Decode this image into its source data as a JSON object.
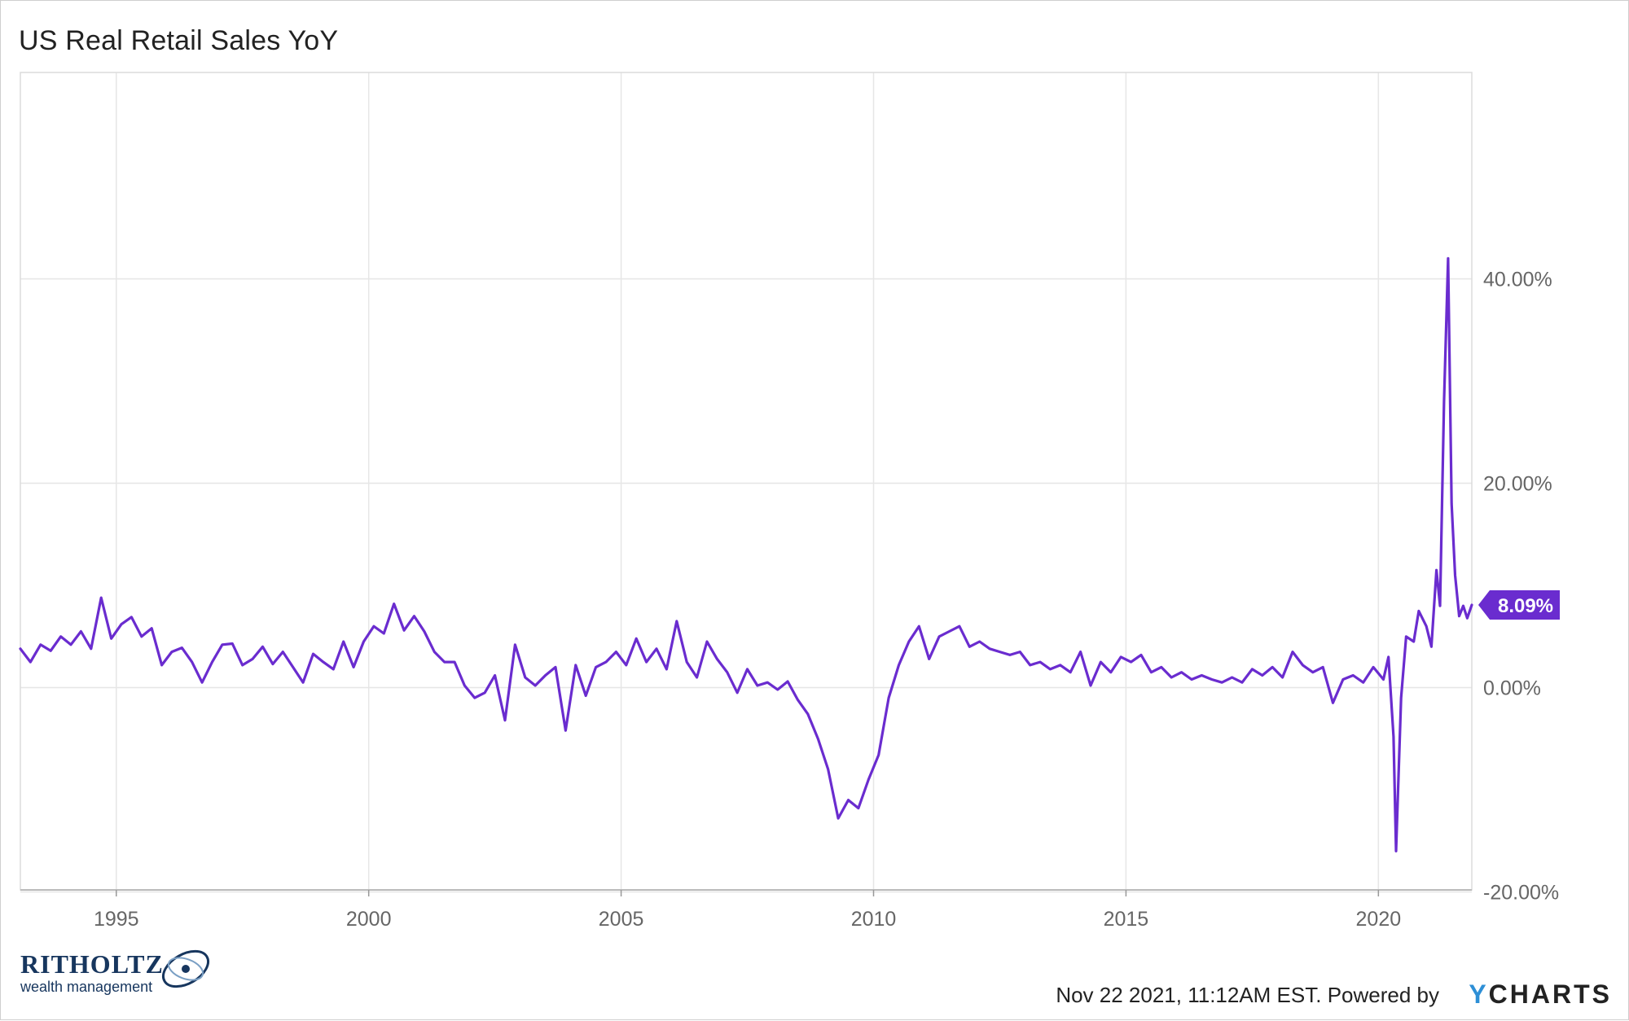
{
  "page": {
    "title": "US Real Retail Sales YoY"
  },
  "footer": {
    "timestamp": "Nov 22 2021, 11:12AM EST. Powered by",
    "brand_y": "Y",
    "brand_rest": "CHARTS"
  },
  "logo": {
    "name": "RITHOLTZ",
    "subtitle": "wealth management"
  },
  "colors": {
    "line": "#6a2ccf",
    "grid": "#e6e6e6",
    "axis": "#999999",
    "label_bg": "#6a2ccf"
  },
  "chart_data": {
    "type": "line",
    "title": "US Real Retail Sales YoY",
    "xlim": [
      1993.1,
      2021.85
    ],
    "ylim": [
      -19.8,
      60.2
    ],
    "x_ticks": [
      {
        "value": 1995,
        "label": "1995"
      },
      {
        "value": 2000,
        "label": "2000"
      },
      {
        "value": 2005,
        "label": "2005"
      },
      {
        "value": 2010,
        "label": "2010"
      },
      {
        "value": 2015,
        "label": "2015"
      },
      {
        "value": 2020,
        "label": "2020"
      }
    ],
    "y_ticks": [
      {
        "value": 40,
        "label": "40.00%"
      },
      {
        "value": 20,
        "label": "20.00%"
      },
      {
        "value": 0,
        "label": "0.00%"
      },
      {
        "value": -20,
        "label": "-20.00%"
      }
    ],
    "last_value_label": "8.09%",
    "last_value": 8.09,
    "grid": true,
    "series": [
      {
        "points": [
          [
            1993.1,
            3.8
          ],
          [
            1993.3,
            2.5
          ],
          [
            1993.5,
            4.2
          ],
          [
            1993.7,
            3.6
          ],
          [
            1993.9,
            5.0
          ],
          [
            1994.1,
            4.2
          ],
          [
            1994.3,
            5.5
          ],
          [
            1994.5,
            3.8
          ],
          [
            1994.7,
            8.8
          ],
          [
            1994.9,
            4.8
          ],
          [
            1995.1,
            6.2
          ],
          [
            1995.3,
            6.9
          ],
          [
            1995.5,
            5.0
          ],
          [
            1995.7,
            5.8
          ],
          [
            1995.9,
            2.2
          ],
          [
            1996.1,
            3.5
          ],
          [
            1996.3,
            3.9
          ],
          [
            1996.5,
            2.5
          ],
          [
            1996.7,
            0.5
          ],
          [
            1996.9,
            2.5
          ],
          [
            1997.1,
            4.2
          ],
          [
            1997.3,
            4.3
          ],
          [
            1997.5,
            2.2
          ],
          [
            1997.7,
            2.8
          ],
          [
            1997.9,
            4.0
          ],
          [
            1998.1,
            2.3
          ],
          [
            1998.3,
            3.5
          ],
          [
            1998.5,
            2.0
          ],
          [
            1998.7,
            0.5
          ],
          [
            1998.9,
            3.3
          ],
          [
            1999.1,
            2.5
          ],
          [
            1999.3,
            1.8
          ],
          [
            1999.5,
            4.5
          ],
          [
            1999.7,
            2.0
          ],
          [
            1999.9,
            4.5
          ],
          [
            2000.1,
            6.0
          ],
          [
            2000.3,
            5.3
          ],
          [
            2000.5,
            8.2
          ],
          [
            2000.7,
            5.6
          ],
          [
            2000.9,
            7.0
          ],
          [
            2001.1,
            5.5
          ],
          [
            2001.3,
            3.5
          ],
          [
            2001.5,
            2.5
          ],
          [
            2001.7,
            2.5
          ],
          [
            2001.9,
            0.2
          ],
          [
            2002.1,
            -1.0
          ],
          [
            2002.3,
            -0.5
          ],
          [
            2002.5,
            1.2
          ],
          [
            2002.7,
            -3.2
          ],
          [
            2002.9,
            4.2
          ],
          [
            2003.1,
            1.0
          ],
          [
            2003.3,
            0.2
          ],
          [
            2003.5,
            1.2
          ],
          [
            2003.7,
            2.0
          ],
          [
            2003.9,
            -4.2
          ],
          [
            2004.1,
            2.2
          ],
          [
            2004.3,
            -0.8
          ],
          [
            2004.5,
            2.0
          ],
          [
            2004.7,
            2.5
          ],
          [
            2004.9,
            3.5
          ],
          [
            2005.1,
            2.2
          ],
          [
            2005.3,
            4.8
          ],
          [
            2005.5,
            2.5
          ],
          [
            2005.7,
            3.8
          ],
          [
            2005.9,
            1.8
          ],
          [
            2006.1,
            6.5
          ],
          [
            2006.3,
            2.5
          ],
          [
            2006.5,
            1.0
          ],
          [
            2006.7,
            4.5
          ],
          [
            2006.9,
            2.8
          ],
          [
            2007.1,
            1.5
          ],
          [
            2007.3,
            -0.5
          ],
          [
            2007.5,
            1.8
          ],
          [
            2007.7,
            0.2
          ],
          [
            2007.9,
            0.5
          ],
          [
            2008.1,
            -0.2
          ],
          [
            2008.3,
            0.6
          ],
          [
            2008.5,
            -1.2
          ],
          [
            2008.7,
            -2.6
          ],
          [
            2008.9,
            -5.0
          ],
          [
            2009.1,
            -8.0
          ],
          [
            2009.3,
            -12.8
          ],
          [
            2009.5,
            -11.0
          ],
          [
            2009.7,
            -11.8
          ],
          [
            2009.9,
            -9.0
          ],
          [
            2010.1,
            -6.6
          ],
          [
            2010.3,
            -1.0
          ],
          [
            2010.5,
            2.2
          ],
          [
            2010.7,
            4.5
          ],
          [
            2010.9,
            6.0
          ],
          [
            2011.1,
            2.8
          ],
          [
            2011.3,
            5.0
          ],
          [
            2011.5,
            5.5
          ],
          [
            2011.7,
            6.0
          ],
          [
            2011.9,
            4.0
          ],
          [
            2012.1,
            4.5
          ],
          [
            2012.3,
            3.8
          ],
          [
            2012.5,
            3.5
          ],
          [
            2012.7,
            3.2
          ],
          [
            2012.9,
            3.5
          ],
          [
            2013.1,
            2.2
          ],
          [
            2013.3,
            2.5
          ],
          [
            2013.5,
            1.8
          ],
          [
            2013.7,
            2.2
          ],
          [
            2013.9,
            1.5
          ],
          [
            2014.1,
            3.5
          ],
          [
            2014.3,
            0.2
          ],
          [
            2014.5,
            2.5
          ],
          [
            2014.7,
            1.5
          ],
          [
            2014.9,
            3.0
          ],
          [
            2015.1,
            2.5
          ],
          [
            2015.3,
            3.2
          ],
          [
            2015.5,
            1.5
          ],
          [
            2015.7,
            2.0
          ],
          [
            2015.9,
            1.0
          ],
          [
            2016.1,
            1.5
          ],
          [
            2016.3,
            0.8
          ],
          [
            2016.5,
            1.2
          ],
          [
            2016.7,
            0.8
          ],
          [
            2016.9,
            0.5
          ],
          [
            2017.1,
            1.0
          ],
          [
            2017.3,
            0.5
          ],
          [
            2017.5,
            1.8
          ],
          [
            2017.7,
            1.2
          ],
          [
            2017.9,
            2.0
          ],
          [
            2018.1,
            1.0
          ],
          [
            2018.3,
            3.5
          ],
          [
            2018.5,
            2.2
          ],
          [
            2018.7,
            1.5
          ],
          [
            2018.9,
            2.0
          ],
          [
            2019.1,
            -1.5
          ],
          [
            2019.3,
            0.8
          ],
          [
            2019.5,
            1.2
          ],
          [
            2019.7,
            0.5
          ],
          [
            2019.9,
            2.0
          ],
          [
            2020.1,
            0.8
          ],
          [
            2020.2,
            3.0
          ],
          [
            2020.3,
            -4.8
          ],
          [
            2020.35,
            -16.0
          ],
          [
            2020.45,
            -1.0
          ],
          [
            2020.55,
            5.0
          ],
          [
            2020.7,
            4.5
          ],
          [
            2020.8,
            7.5
          ],
          [
            2020.95,
            6.0
          ],
          [
            2021.05,
            4.0
          ],
          [
            2021.15,
            11.5
          ],
          [
            2021.22,
            8.0
          ],
          [
            2021.3,
            28.0
          ],
          [
            2021.38,
            42.0
          ],
          [
            2021.45,
            18.0
          ],
          [
            2021.52,
            11.0
          ],
          [
            2021.6,
            7.0
          ],
          [
            2021.68,
            8.0
          ],
          [
            2021.76,
            6.8
          ],
          [
            2021.85,
            8.09
          ]
        ]
      }
    ]
  }
}
